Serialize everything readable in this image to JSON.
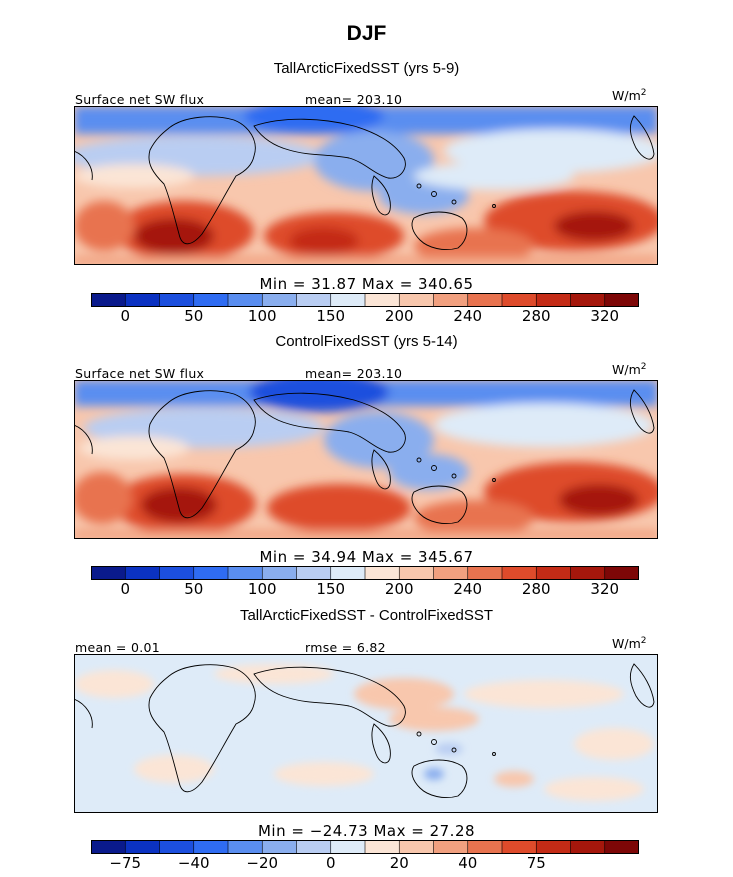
{
  "page": {
    "title": "DJF"
  },
  "chart_data": [
    {
      "type": "heatmap",
      "title": "TallArcticFixedSST (yrs 5-9)",
      "left_label": "Surface net SW flux",
      "stat_label": "mean= 203.10",
      "units": "W/m",
      "units_exp": "2",
      "min_max": "Min =   31.87 Max =   340.65",
      "min": 31.87,
      "max": 340.65,
      "mean": 203.1,
      "colorbar": {
        "colors": [
          "#0a1a8c",
          "#0b32c2",
          "#1c4fde",
          "#2f6cf2",
          "#5a8ef0",
          "#8aaeee",
          "#b9cdf2",
          "#deebf8",
          "#fbe5d6",
          "#f8c7ad",
          "#f1a07f",
          "#e8734f",
          "#de4b2b",
          "#c42b16",
          "#a5170c",
          "#7d0707"
        ],
        "tick_labels": [
          "0",
          "50",
          "100",
          "150",
          "200",
          "240",
          "280",
          "320"
        ]
      }
    },
    {
      "type": "heatmap",
      "title": "ControlFixedSST (yrs 5-14)",
      "left_label": "Surface net SW flux",
      "stat_label": "mean= 203.10",
      "units": "W/m",
      "units_exp": "2",
      "min_max": "Min =   34.94 Max =   345.67",
      "min": 34.94,
      "max": 345.67,
      "mean": 203.1,
      "colorbar": {
        "colors": [
          "#0a1a8c",
          "#0b32c2",
          "#1c4fde",
          "#2f6cf2",
          "#5a8ef0",
          "#8aaeee",
          "#b9cdf2",
          "#deebf8",
          "#fbe5d6",
          "#f8c7ad",
          "#f1a07f",
          "#e8734f",
          "#de4b2b",
          "#c42b16",
          "#a5170c",
          "#7d0707"
        ],
        "tick_labels": [
          "0",
          "50",
          "100",
          "150",
          "200",
          "240",
          "280",
          "320"
        ]
      }
    },
    {
      "type": "heatmap",
      "title": "TallArcticFixedSST - ControlFixedSST",
      "left_label": "mean =   0.01",
      "stat_label": "rmse =   6.82",
      "units": "W/m",
      "units_exp": "2",
      "min_max": "Min = −24.73 Max =   27.28",
      "min": -24.73,
      "max": 27.28,
      "mean": 0.01,
      "rmse": 6.82,
      "colorbar": {
        "colors": [
          "#0a1a8c",
          "#0b32c2",
          "#1c4fde",
          "#2f6cf2",
          "#5a8ef0",
          "#8aaeee",
          "#b9cdf2",
          "#deebf8",
          "#fbe5d6",
          "#f8c7ad",
          "#f1a07f",
          "#e8734f",
          "#de4b2b",
          "#c42b16",
          "#a5170c",
          "#7d0707"
        ],
        "tick_labels": [
          "−75",
          "−40",
          "−20",
          "0",
          "20",
          "40",
          "75"
        ]
      }
    }
  ]
}
